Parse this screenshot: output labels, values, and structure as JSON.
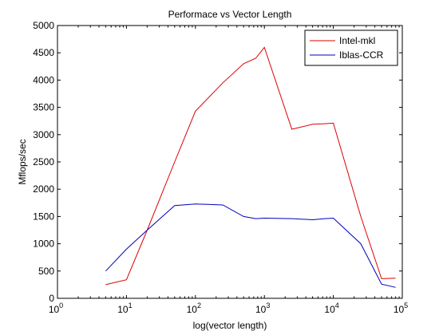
{
  "chart_data": {
    "type": "line",
    "title": "Performace vs Vector Length",
    "xlabel": "log(vector length)",
    "ylabel": "Mflops/sec",
    "x_scale": "log",
    "xlim": [
      1,
      100000
    ],
    "ylim": [
      0,
      5000
    ],
    "x_ticks": [
      1,
      10,
      100,
      1000,
      10000,
      100000
    ],
    "x_tick_labels": [
      {
        "base": "10",
        "exp": "0"
      },
      {
        "base": "10",
        "exp": "1"
      },
      {
        "base": "10",
        "exp": "2"
      },
      {
        "base": "10",
        "exp": "3"
      },
      {
        "base": "10",
        "exp": "4"
      },
      {
        "base": "10",
        "exp": "5"
      }
    ],
    "y_ticks": [
      0,
      500,
      1000,
      1500,
      2000,
      2500,
      3000,
      3500,
      4000,
      4500,
      5000
    ],
    "y_tick_labels": [
      "0",
      "500",
      "1000",
      "1500",
      "2000",
      "2500",
      "3000",
      "3500",
      "4000",
      "4500",
      "5000"
    ],
    "grid": false,
    "legend_position": "top-right",
    "series": [
      {
        "name": "Intel-mkl",
        "color": "#dd0000",
        "x": [
          5,
          10,
          20,
          50,
          100,
          250,
          500,
          750,
          1000,
          2500,
          5000,
          7500,
          10000,
          25000,
          50000,
          80000
        ],
        "y": [
          250,
          340,
          1250,
          2500,
          3430,
          3950,
          4300,
          4400,
          4600,
          3100,
          3190,
          3200,
          3210,
          1500,
          360,
          370
        ]
      },
      {
        "name": "Iblas-CCR",
        "color": "#0000bb",
        "x": [
          5,
          10,
          20,
          50,
          100,
          250,
          500,
          750,
          1000,
          2500,
          5000,
          7500,
          10000,
          25000,
          50000,
          80000
        ],
        "y": [
          500,
          900,
          1250,
          1700,
          1730,
          1710,
          1500,
          1460,
          1470,
          1460,
          1440,
          1460,
          1470,
          1000,
          260,
          200
        ]
      }
    ]
  }
}
